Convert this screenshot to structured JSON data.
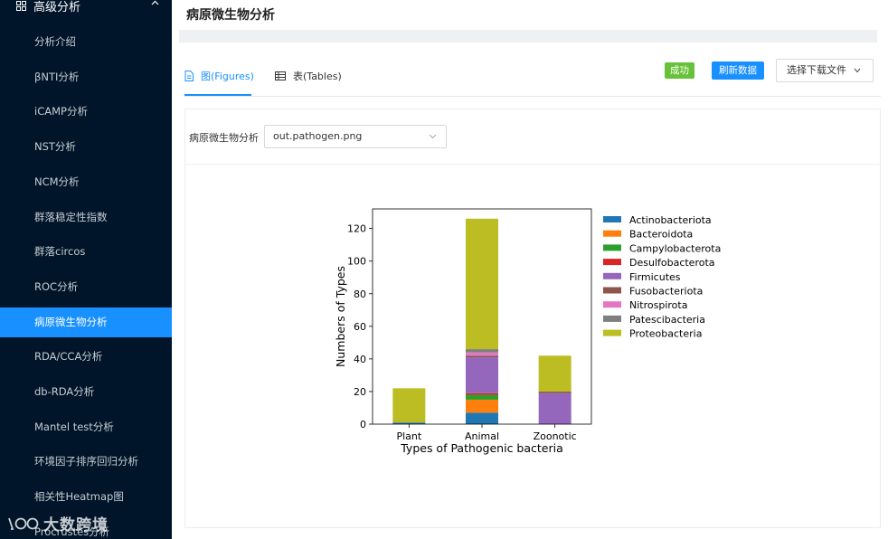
{
  "sidebar": {
    "header": "高级分析",
    "items": [
      {
        "label": "分析介绍",
        "active": false
      },
      {
        "label": "βNTI分析",
        "active": false
      },
      {
        "label": "iCAMP分析",
        "active": false
      },
      {
        "label": "NST分析",
        "active": false
      },
      {
        "label": "NCM分析",
        "active": false
      },
      {
        "label": "群落稳定性指数",
        "active": false
      },
      {
        "label": "群落circos",
        "active": false
      },
      {
        "label": "ROC分析",
        "active": false
      },
      {
        "label": "病原微生物分析",
        "active": true
      },
      {
        "label": "RDA/CCA分析",
        "active": false
      },
      {
        "label": "db-RDA分析",
        "active": false
      },
      {
        "label": "Mantel test分析",
        "active": false
      },
      {
        "label": "环境因子排序回归分析",
        "active": false
      },
      {
        "label": "相关性Heatmap图",
        "active": false
      },
      {
        "label": "Procrustes分析",
        "active": false
      }
    ],
    "watermark": "大数跨境"
  },
  "page": {
    "title": "病原微生物分析"
  },
  "tabs": [
    {
      "label": "图(Figures)",
      "icon": "file-icon",
      "active": true
    },
    {
      "label": "表(Tables)",
      "icon": "table-icon",
      "active": false
    }
  ],
  "toolbar": {
    "success_label": "成功",
    "refresh_label": "刷新数据",
    "download_label": "选择下载文件"
  },
  "selector": {
    "label": "病原微生物分析",
    "value": "out.pathogen.png"
  },
  "colors": {
    "primary": "#1890ff",
    "success": "#67c23a",
    "sidebar_bg": "#001529"
  },
  "chart_data": {
    "type": "bar",
    "stacked": true,
    "categories": [
      "Plant",
      "Animal",
      "Zoonotic"
    ],
    "xlabel": "Types of Pathogenic bacteria",
    "ylabel": "Numbers of Types",
    "ylim": [
      0,
      132
    ],
    "yticks": [
      0,
      20,
      40,
      60,
      80,
      100,
      120
    ],
    "legend_position": "right",
    "series": [
      {
        "name": "Actinobacteriota",
        "color": "#1f77b4",
        "values": [
          1,
          7,
          0
        ]
      },
      {
        "name": "Bacteroidota",
        "color": "#ff7f0e",
        "values": [
          0,
          8,
          0
        ]
      },
      {
        "name": "Campylobacterota",
        "color": "#2ca02c",
        "values": [
          0,
          3,
          0
        ]
      },
      {
        "name": "Desulfobacterota",
        "color": "#d62728",
        "values": [
          0,
          1,
          0
        ]
      },
      {
        "name": "Firmicutes",
        "color": "#9467bd",
        "values": [
          0,
          22,
          19
        ]
      },
      {
        "name": "Fusobacteriota",
        "color": "#8c564b",
        "values": [
          0,
          1,
          1
        ]
      },
      {
        "name": "Nitrospirota",
        "color": "#e377c2",
        "values": [
          0,
          2,
          0
        ]
      },
      {
        "name": "Patescibacteria",
        "color": "#7f7f7f",
        "values": [
          0,
          2,
          0
        ]
      },
      {
        "name": "Proteobacteria",
        "color": "#bcbd22",
        "values": [
          21,
          80,
          22
        ]
      }
    ]
  }
}
